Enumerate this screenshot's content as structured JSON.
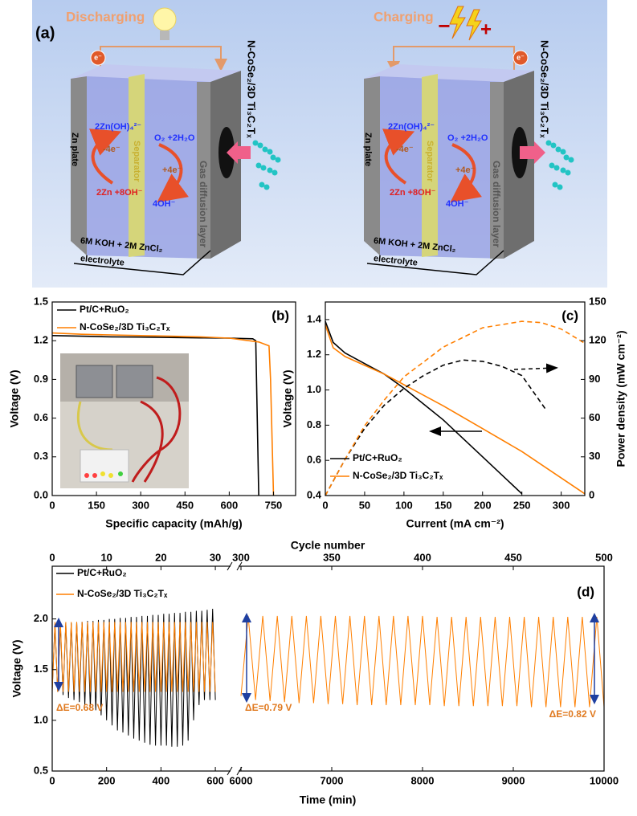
{
  "diagram": {
    "label": "(a)",
    "cells": [
      {
        "mode": "Discharging",
        "electron": "e⁻",
        "cathode": "N-CoSe₂/3D Ti₃C₂Tₓ",
        "anode": "Zn plate",
        "separator": "Separator",
        "gdl": "Gas diffusion layer",
        "r1": "2Zn(OH)₄²⁻",
        "r2": "-4e⁻",
        "r3": "2Zn +8OH⁻",
        "r4": "O₂ +2H₂O",
        "r5": "+4e⁻",
        "r6": "4OH⁻",
        "electrolyte": "6M KOH + 2M ZnCl₂",
        "electrolyte_label": "electrolyte"
      },
      {
        "mode": "Charging",
        "terminals": [
          "−",
          "+"
        ],
        "electron": "e⁻",
        "cathode": "N-CoSe₂/3D Ti₃C₂Tₓ",
        "anode": "Zn plate",
        "separator": "Separator",
        "gdl": "Gas diffusion layer",
        "r1": "2Zn(OH)₄²⁻",
        "r2": "-4e⁻",
        "r3": "2Zn +8OH⁻",
        "r4": "O₂ +2H₂O",
        "r5": "+4e⁻",
        "r6": "4OH⁻",
        "electrolyte": "6M KOH + 2M ZnCl₂",
        "electrolyte_label": "electrolyte"
      }
    ]
  },
  "chart_data": [
    {
      "type": "line",
      "panel_label": "(b)",
      "xlabel": "Specific capacity (mAh/g)",
      "ylabel": "Voltage (V)",
      "xlim": [
        0,
        825
      ],
      "xticks": [
        0,
        150,
        300,
        450,
        600,
        750
      ],
      "ylim": [
        0,
        1.5
      ],
      "yticks": [
        {
          "value": 0,
          "label": "0.0"
        },
        0.3,
        0.6,
        0.9,
        1.2,
        1.5
      ],
      "legend": "upper left",
      "series": [
        {
          "name": "Pt/C+RuO₂",
          "color": "#000000",
          "style": "solid",
          "x": [
            0,
            100,
            200,
            300,
            400,
            500,
            600,
            680,
            690,
            700
          ],
          "values": [
            1.24,
            1.235,
            1.23,
            1.228,
            1.225,
            1.222,
            1.22,
            1.215,
            1.2,
            0
          ]
        },
        {
          "name": "N-CoSe₂/3D Ti₃C₂Tₓ",
          "color": "#ff7f00",
          "style": "solid",
          "x": [
            0,
            100,
            200,
            300,
            400,
            500,
            600,
            700,
            735,
            740,
            750
          ],
          "values": [
            1.26,
            1.25,
            1.245,
            1.24,
            1.235,
            1.23,
            1.22,
            1.19,
            1.16,
            0.9,
            0
          ]
        }
      ]
    },
    {
      "type": "line",
      "panel_label": "(c)",
      "xlabel": "Current (mA cm⁻²)",
      "ylabel": "Voltage (V)",
      "y2label": "Power density (mW cm⁻²)",
      "xlim": [
        0,
        330
      ],
      "xticks": [
        0,
        50,
        100,
        150,
        200,
        250,
        300
      ],
      "ylim": [
        0.4,
        1.5
      ],
      "yticks": [
        0.4,
        0.6,
        0.8,
        {
          "value": 1.0,
          "label": "1.0"
        },
        1.2,
        1.4
      ],
      "y2lim": [
        0,
        150
      ],
      "y2ticks": [
        0,
        30,
        60,
        90,
        120,
        150
      ],
      "legend": "lower left",
      "series": [
        {
          "name": "Pt/C+RuO₂",
          "color": "#000000",
          "style": "solid",
          "x": [
            0,
            10,
            25,
            50,
            75,
            100,
            150,
            200,
            250
          ],
          "values": [
            1.39,
            1.27,
            1.21,
            1.15,
            1.09,
            1.01,
            0.83,
            0.62,
            0.41
          ]
        },
        {
          "name": "N-CoSe₂/3D Ti₃C₂Tₓ",
          "color": "#ff7f00",
          "style": "solid",
          "x": [
            0,
            10,
            25,
            50,
            75,
            100,
            150,
            200,
            250,
            300,
            330
          ],
          "values": [
            1.37,
            1.24,
            1.19,
            1.14,
            1.09,
            1.03,
            0.91,
            0.78,
            0.65,
            0.5,
            0.41
          ]
        },
        {
          "color": "#000000",
          "style": "dashed",
          "axis": "y2",
          "x": [
            0,
            25,
            50,
            75,
            100,
            125,
            150,
            175,
            200,
            225,
            250,
            280
          ],
          "values": [
            0,
            28,
            52,
            70,
            83,
            93,
            101,
            105,
            104,
            100,
            93,
            67
          ]
        },
        {
          "color": "#ff7f00",
          "style": "dashed",
          "axis": "y2",
          "x": [
            0,
            25,
            50,
            75,
            100,
            150,
            200,
            250,
            275,
            300,
            330
          ],
          "values": [
            0,
            28,
            54,
            74,
            92,
            115,
            130,
            135,
            134,
            129,
            118
          ]
        }
      ]
    },
    {
      "type": "broken-line",
      "panel_label": "(d)",
      "xlabel": "Time (min)",
      "ylabel": "Voltage (V)",
      "top_xlabel": "Cycle number",
      "ylim": [
        0.5,
        2.52
      ],
      "yticks": [
        0.5,
        {
          "value": 1.0,
          "label": "1.0"
        },
        1.5,
        {
          "value": 2.0,
          "label": "2.0"
        }
      ],
      "legend": "upper left",
      "segments": [
        {
          "xlim": [
            0,
            650
          ],
          "xticks": [
            0,
            200,
            400,
            600
          ],
          "top_xlim": [
            0,
            32.5
          ],
          "top_xticks": [
            0,
            10,
            20,
            30
          ]
        },
        {
          "xlim": [
            6000,
            10000
          ],
          "xticks": [
            6000,
            7000,
            8000,
            9000,
            10000
          ],
          "top_xlim": [
            300,
            500
          ],
          "top_xticks": [
            300,
            350,
            400,
            450,
            500
          ]
        }
      ],
      "annotations": [
        "ΔE=0.68 V",
        "ΔE=0.79 V",
        "ΔE=0.82 V"
      ],
      "series": [
        {
          "name": "Pt/C+RuO₂",
          "color": "#000000",
          "segments": [
            {
              "x": [
                0,
                10,
                20,
                30,
                40,
                50,
                60,
                70,
                80,
                90,
                100,
                110,
                120,
                130,
                140,
                150,
                160,
                170,
                180,
                190,
                200,
                210,
                220,
                230,
                240,
                250,
                260,
                270,
                280,
                290,
                300,
                310,
                320,
                330,
                340,
                350,
                360,
                370,
                380,
                390,
                400,
                410,
                420,
                430,
                440,
                450,
                460,
                470,
                480,
                490,
                500,
                510,
                520,
                530,
                540,
                550,
                560,
                570,
                580,
                590,
                600
              ],
              "values": [
                1.3,
                1.95,
                1.28,
                1.95,
                1.25,
                1.96,
                1.22,
                1.96,
                1.2,
                1.97,
                1.18,
                1.97,
                1.15,
                1.98,
                1.12,
                1.98,
                1.1,
                1.99,
                1.05,
                1.99,
                1.0,
                2.0,
                0.95,
                2.0,
                0.9,
                2.01,
                0.88,
                2.01,
                0.85,
                2.02,
                0.82,
                2.02,
                0.8,
                2.03,
                0.78,
                2.03,
                0.76,
                2.04,
                0.75,
                2.04,
                0.75,
                2.05,
                0.75,
                2.05,
                0.74,
                2.06,
                0.74,
                2.06,
                0.75,
                2.07,
                0.8,
                2.07,
                1.0,
                2.08,
                1.15,
                2.08,
                1.2,
                2.09,
                1.2,
                2.1,
                1.2
              ]
            }
          ]
        },
        {
          "name": "N-CoSe₂/3D Ti₃C₂Tₓ",
          "color": "#ff7f00",
          "segments": [
            {
              "x": [
                0,
                10,
                20,
                30,
                40,
                50,
                60,
                70,
                80,
                90,
                100,
                110,
                120,
                130,
                140,
                150,
                160,
                170,
                180,
                190,
                200,
                210,
                220,
                230,
                240,
                250,
                260,
                270,
                280,
                290,
                300,
                310,
                320,
                330,
                340,
                350,
                360,
                370,
                380,
                390,
                400,
                410,
                420,
                430,
                440,
                450,
                460,
                470,
                480,
                490,
                500,
                510,
                520,
                530,
                540,
                550,
                560,
                570,
                580,
                590,
                600
              ],
              "values": [
                1.28,
                1.97,
                1.28,
                1.97,
                1.28,
                1.97,
                1.28,
                1.97,
                1.28,
                1.97,
                1.28,
                1.97,
                1.28,
                1.97,
                1.28,
                1.97,
                1.28,
                1.97,
                1.28,
                1.97,
                1.28,
                1.97,
                1.28,
                1.97,
                1.28,
                1.97,
                1.28,
                1.97,
                1.28,
                1.97,
                1.28,
                1.97,
                1.28,
                1.97,
                1.28,
                1.97,
                1.28,
                1.97,
                1.28,
                1.97,
                1.28,
                1.97,
                1.28,
                1.97,
                1.28,
                1.97,
                1.28,
                1.97,
                1.28,
                1.97,
                1.28,
                1.97,
                1.28,
                1.97,
                1.28,
                1.97,
                1.28,
                1.97,
                1.28,
                1.97,
                1.28
              ]
            },
            {
              "x": [
                6000,
                6080,
                6160,
                6240,
                6320,
                6400,
                6480,
                6560,
                6640,
                6720,
                6800,
                6880,
                6960,
                7040,
                7120,
                7200,
                7280,
                7360,
                7440,
                7520,
                7600,
                7680,
                7760,
                7840,
                7920,
                8000,
                8080,
                8160,
                8240,
                8320,
                8400,
                8480,
                8560,
                8640,
                8720,
                8800,
                8880,
                8960,
                9040,
                9120,
                9200,
                9280,
                9360,
                9440,
                9520,
                9600,
                9680,
                9760,
                9840,
                9920,
                10000
              ],
              "values": [
                1.24,
                2.03,
                1.2,
                2.03,
                1.19,
                2.03,
                1.18,
                2.03,
                1.17,
                2.03,
                1.17,
                2.03,
                1.16,
                2.03,
                1.16,
                2.03,
                1.15,
                2.03,
                1.15,
                2.03,
                1.15,
                2.03,
                1.15,
                2.03,
                1.15,
                2.03,
                1.15,
                2.02,
                1.14,
                2.02,
                1.14,
                2.02,
                1.14,
                2.02,
                1.14,
                2.02,
                1.14,
                2.02,
                1.14,
                2.02,
                1.13,
                2.02,
                1.13,
                2.02,
                1.13,
                2.02,
                1.13,
                2.02,
                1.13,
                2.02,
                1.13
              ]
            }
          ]
        }
      ]
    }
  ]
}
